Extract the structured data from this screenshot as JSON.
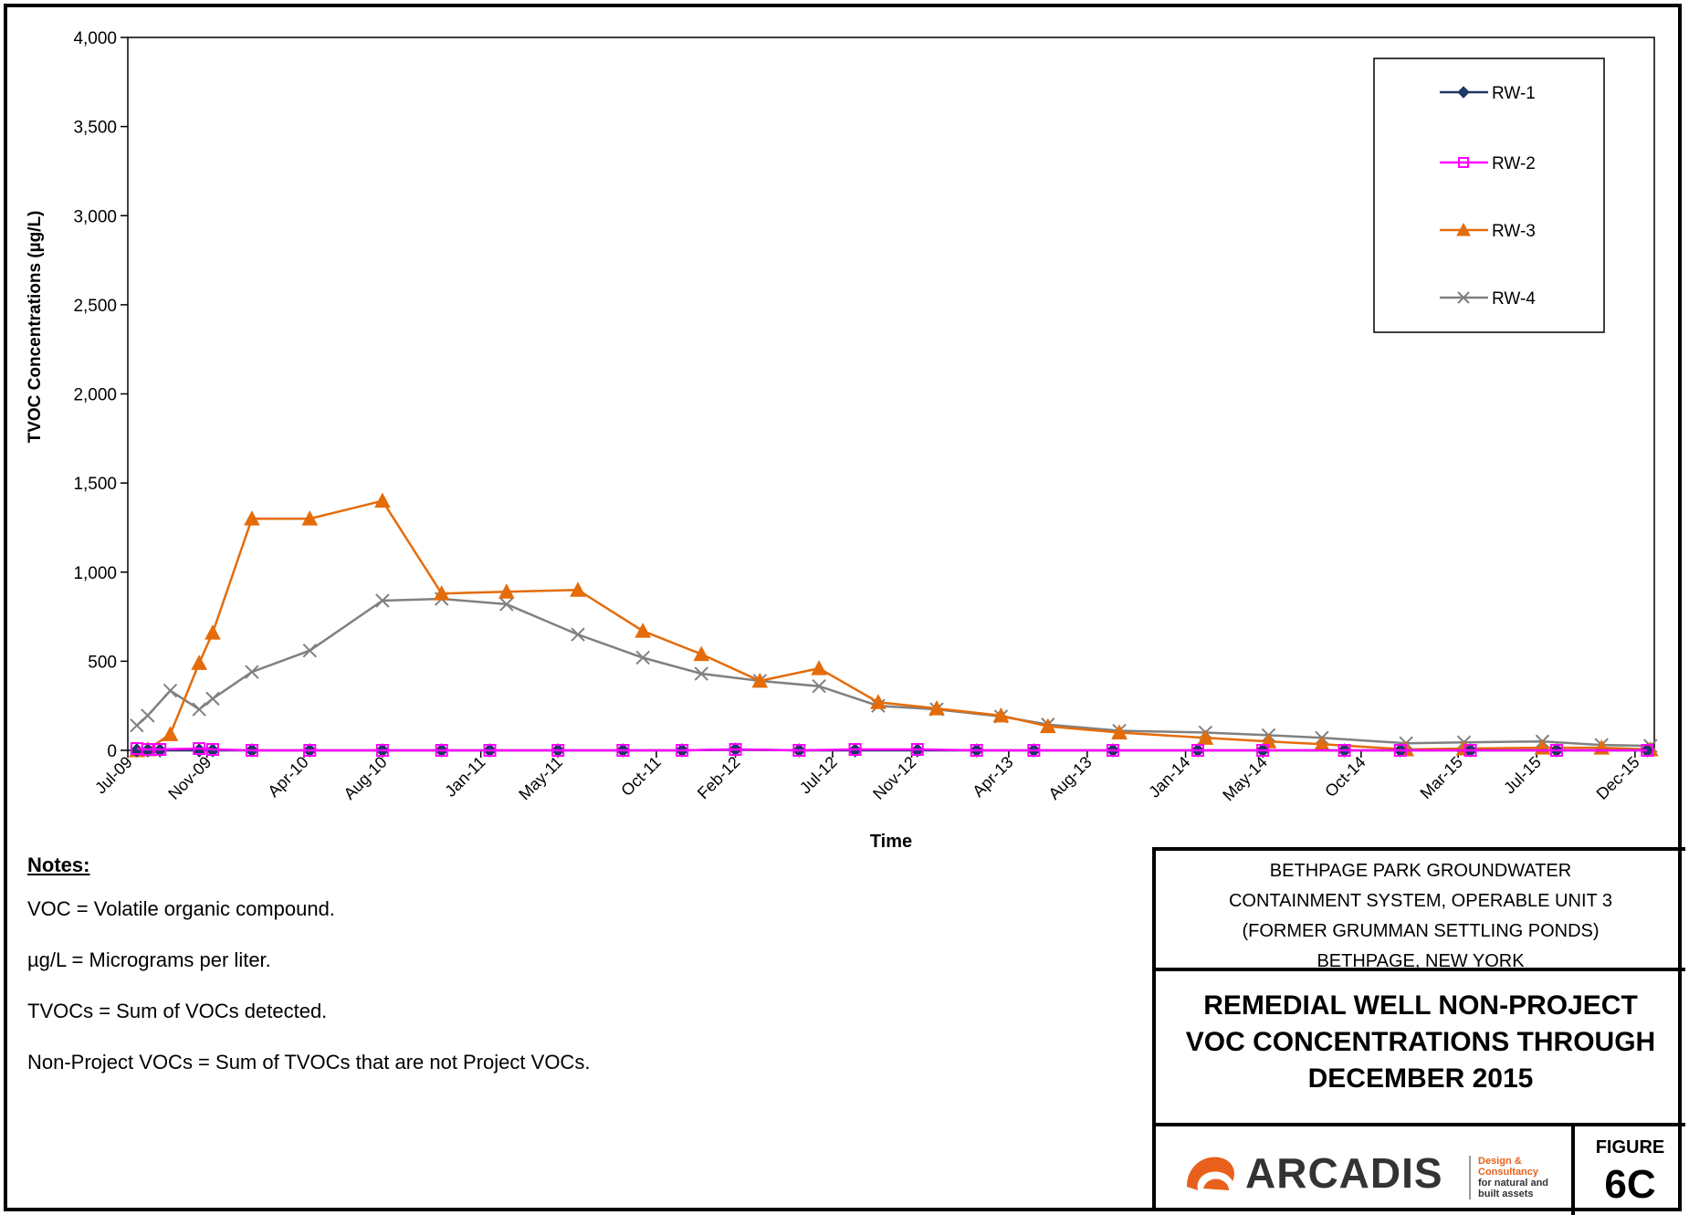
{
  "chart_data": {
    "type": "line",
    "title": "",
    "xlabel": "Time",
    "ylabel": "TVOC Concentrations (µg/L)",
    "ylim": [
      0,
      4000
    ],
    "y_ticks": [
      "0",
      "500",
      "1,000",
      "1,500",
      "2,000",
      "2,500",
      "3,000",
      "3,500",
      "4,000"
    ],
    "x_range": [
      "2009-07-01",
      "2015-12-31"
    ],
    "x_ticks": [
      {
        "date": "2009-07-01",
        "label": "Jul-09"
      },
      {
        "date": "2009-11-01",
        "label": "Nov-09"
      },
      {
        "date": "2010-04-01",
        "label": "Apr-10"
      },
      {
        "date": "2010-08-01",
        "label": "Aug-10"
      },
      {
        "date": "2011-01-01",
        "label": "Jan-11"
      },
      {
        "date": "2011-05-01",
        "label": "May-11"
      },
      {
        "date": "2011-10-01",
        "label": "Oct-11"
      },
      {
        "date": "2012-02-01",
        "label": "Feb-12"
      },
      {
        "date": "2012-07-01",
        "label": "Jul-12"
      },
      {
        "date": "2012-11-01",
        "label": "Nov-12"
      },
      {
        "date": "2013-04-01",
        "label": "Apr-13"
      },
      {
        "date": "2013-08-01",
        "label": "Aug-13"
      },
      {
        "date": "2014-01-01",
        "label": "Jan-14"
      },
      {
        "date": "2014-05-01",
        "label": "May-14"
      },
      {
        "date": "2014-10-01",
        "label": "Oct-14"
      },
      {
        "date": "2015-03-01",
        "label": "Mar-15"
      },
      {
        "date": "2015-07-01",
        "label": "Jul-15"
      },
      {
        "date": "2015-12-01",
        "label": "Dec-15"
      }
    ],
    "grid": false,
    "legend_position": "top-right",
    "series": [
      {
        "name": "RW-1",
        "color": "#1f3864",
        "marker": "diamond",
        "points": [
          [
            "2009-07-15",
            0
          ],
          [
            "2009-08-01",
            0
          ],
          [
            "2009-08-20",
            0
          ],
          [
            "2009-10-20",
            0
          ],
          [
            "2009-11-10",
            0
          ],
          [
            "2010-01-10",
            0
          ],
          [
            "2010-04-10",
            0
          ],
          [
            "2010-08-01",
            0
          ],
          [
            "2010-11-01",
            0
          ],
          [
            "2011-01-15",
            0
          ],
          [
            "2011-05-01",
            0
          ],
          [
            "2011-08-10",
            0
          ],
          [
            "2011-11-10",
            0
          ],
          [
            "2012-02-01",
            5
          ],
          [
            "2012-05-10",
            0
          ],
          [
            "2012-08-05",
            0
          ],
          [
            "2012-11-10",
            0
          ],
          [
            "2013-02-10",
            0
          ],
          [
            "2013-05-10",
            0
          ],
          [
            "2013-09-10",
            0
          ],
          [
            "2014-01-20",
            0
          ],
          [
            "2014-05-01",
            0
          ],
          [
            "2014-09-05",
            0
          ],
          [
            "2014-12-01",
            0
          ],
          [
            "2015-03-20",
            0
          ],
          [
            "2015-08-01",
            0
          ],
          [
            "2015-12-20",
            0
          ]
        ]
      },
      {
        "name": "RW-2",
        "color": "#ff00ff",
        "marker": "square",
        "points": [
          [
            "2009-07-15",
            10
          ],
          [
            "2009-08-01",
            5
          ],
          [
            "2009-08-20",
            5
          ],
          [
            "2009-10-20",
            10
          ],
          [
            "2009-11-10",
            5
          ],
          [
            "2010-01-10",
            0
          ],
          [
            "2010-04-10",
            0
          ],
          [
            "2010-08-01",
            0
          ],
          [
            "2010-11-01",
            0
          ],
          [
            "2011-01-15",
            0
          ],
          [
            "2011-05-01",
            0
          ],
          [
            "2011-08-10",
            0
          ],
          [
            "2011-11-10",
            0
          ],
          [
            "2012-02-01",
            5
          ],
          [
            "2012-05-10",
            0
          ],
          [
            "2012-08-05",
            5
          ],
          [
            "2012-11-10",
            5
          ],
          [
            "2013-02-10",
            0
          ],
          [
            "2013-05-10",
            0
          ],
          [
            "2013-09-10",
            0
          ],
          [
            "2014-01-20",
            0
          ],
          [
            "2014-05-01",
            0
          ],
          [
            "2014-09-05",
            0
          ],
          [
            "2014-12-01",
            0
          ],
          [
            "2015-03-20",
            0
          ],
          [
            "2015-08-01",
            0
          ],
          [
            "2015-12-20",
            0
          ]
        ]
      },
      {
        "name": "RW-3",
        "color": "#e46c0a",
        "marker": "triangle",
        "points": [
          [
            "2009-07-15",
            0
          ],
          [
            "2009-08-01",
            5
          ],
          [
            "2009-09-05",
            90
          ],
          [
            "2009-10-20",
            490
          ],
          [
            "2009-11-10",
            660
          ],
          [
            "2010-01-10",
            1300
          ],
          [
            "2010-04-10",
            1300
          ],
          [
            "2010-08-01",
            1400
          ],
          [
            "2010-11-01",
            880
          ],
          [
            "2011-02-10",
            890
          ],
          [
            "2011-06-01",
            900
          ],
          [
            "2011-09-10",
            670
          ],
          [
            "2011-12-10",
            540
          ],
          [
            "2012-03-10",
            390
          ],
          [
            "2012-06-10",
            460
          ],
          [
            "2012-09-10",
            270
          ],
          [
            "2012-12-10",
            235
          ],
          [
            "2013-03-20",
            195
          ],
          [
            "2013-06-01",
            135
          ],
          [
            "2013-09-20",
            100
          ],
          [
            "2014-02-01",
            70
          ],
          [
            "2014-05-10",
            50
          ],
          [
            "2014-08-01",
            35
          ],
          [
            "2014-12-10",
            5
          ],
          [
            "2015-03-10",
            10
          ],
          [
            "2015-07-10",
            15
          ],
          [
            "2015-10-10",
            15
          ],
          [
            "2015-12-25",
            5
          ]
        ]
      },
      {
        "name": "RW-4",
        "color": "#808080",
        "marker": "x",
        "points": [
          [
            "2009-07-15",
            140
          ],
          [
            "2009-08-01",
            195
          ],
          [
            "2009-09-05",
            335
          ],
          [
            "2009-10-20",
            230
          ],
          [
            "2009-11-10",
            290
          ],
          [
            "2010-01-10",
            440
          ],
          [
            "2010-04-10",
            560
          ],
          [
            "2010-08-01",
            840
          ],
          [
            "2010-11-01",
            850
          ],
          [
            "2011-02-10",
            820
          ],
          [
            "2011-06-01",
            650
          ],
          [
            "2011-09-10",
            520
          ],
          [
            "2011-12-10",
            430
          ],
          [
            "2012-03-10",
            390
          ],
          [
            "2012-06-10",
            360
          ],
          [
            "2012-09-10",
            250
          ],
          [
            "2012-12-10",
            230
          ],
          [
            "2013-03-20",
            190
          ],
          [
            "2013-06-01",
            145
          ],
          [
            "2013-09-20",
            110
          ],
          [
            "2014-02-01",
            100
          ],
          [
            "2014-05-10",
            85
          ],
          [
            "2014-08-01",
            70
          ],
          [
            "2014-12-10",
            40
          ],
          [
            "2015-03-10",
            45
          ],
          [
            "2015-07-10",
            50
          ],
          [
            "2015-10-10",
            30
          ],
          [
            "2015-12-25",
            25
          ]
        ]
      }
    ]
  },
  "notes": {
    "header": "Notes:",
    "lines": [
      "VOC = Volatile organic compound.",
      "µg/L = Micrograms per liter.",
      "TVOCs = Sum of VOCs detected.",
      "Non-Project VOCs = Sum of TVOCs that are not Project VOCs."
    ]
  },
  "title_block": {
    "project_lines": [
      "BETHPAGE PARK GROUNDWATER",
      "CONTAINMENT SYSTEM, OPERABLE UNIT 3",
      "(FORMER GRUMMAN SETTLING PONDS)",
      "BETHPAGE, NEW YORK"
    ],
    "title_lines": [
      "REMEDIAL WELL NON-PROJECT",
      "VOC CONCENTRATIONS THROUGH",
      "DECEMBER 2015"
    ],
    "company": "ARCADIS",
    "tagline": [
      "Design & Consultancy",
      "for natural and",
      "built assets"
    ],
    "figure_label": "FIGURE",
    "figure_number": "6C",
    "logo_icon": "arcadis-logo-icon",
    "brand_color": "#e8601c"
  }
}
